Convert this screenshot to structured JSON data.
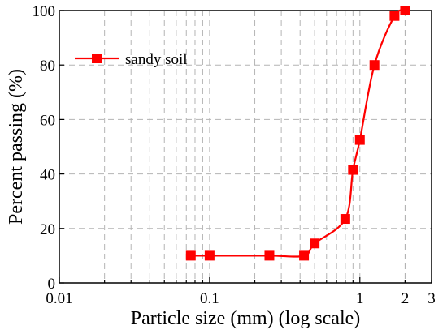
{
  "chart_data": {
    "type": "line",
    "xlabel": "Particle size (mm) (log scale)",
    "ylabel": "Percent passing (%)",
    "xscale": "log",
    "xlim": [
      0.01,
      3
    ],
    "ylim": [
      0,
      100
    ],
    "xticks": [
      {
        "value": 0.01,
        "label": "0.01"
      },
      {
        "value": 0.1,
        "label": "0.1"
      },
      {
        "value": 1,
        "label": "1"
      },
      {
        "value": 2,
        "label": "2"
      },
      {
        "value": 3,
        "label": "3"
      }
    ],
    "yticks": [
      {
        "value": 0,
        "label": "0"
      },
      {
        "value": 20,
        "label": "20"
      },
      {
        "value": 40,
        "label": "40"
      },
      {
        "value": 60,
        "label": "60"
      },
      {
        "value": 80,
        "label": "80"
      },
      {
        "value": 100,
        "label": "100"
      }
    ],
    "grid": true,
    "legend_position": "top-left",
    "series": [
      {
        "name": "sandy soil",
        "color": "#ff0000",
        "marker": "square",
        "x": [
          0.075,
          0.1,
          0.25,
          0.425,
          0.5,
          0.8,
          0.9,
          1.0,
          1.25,
          1.7,
          2.0
        ],
        "y": [
          10,
          10,
          10,
          10,
          14.5,
          23.5,
          41.5,
          52.5,
          80,
          98,
          100
        ]
      }
    ]
  }
}
